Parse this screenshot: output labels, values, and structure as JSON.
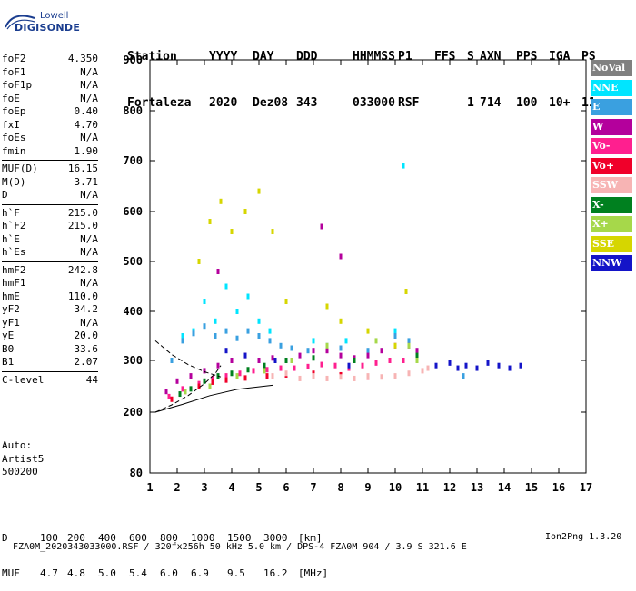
{
  "logo": {
    "line1": "Lowell",
    "line2": "DIGISONDE"
  },
  "header": {
    "columns": [
      {
        "h": "Station",
        "v": "Fortaleza"
      },
      {
        "h": "YYYY",
        "v": "2020"
      },
      {
        "h": "DAY",
        "v": "Dez08"
      },
      {
        "h": "DDD",
        "v": "343"
      },
      {
        "h": "HHMMSS",
        "v": "033000"
      },
      {
        "h": "P1",
        "v": "RSF"
      },
      {
        "h": "FFS",
        "v": ""
      },
      {
        "h": "S",
        "v": "1"
      },
      {
        "h": "AXN",
        "v": "714"
      },
      {
        "h": "PPS",
        "v": "100"
      },
      {
        "h": "IGA",
        "v": "10+"
      },
      {
        "h": "PS",
        "v": "11"
      }
    ]
  },
  "params": [
    [
      {
        "label": "foF2",
        "value": "4.350"
      },
      {
        "label": "foF1",
        "value": "N/A"
      },
      {
        "label": "foF1p",
        "value": "N/A"
      },
      {
        "label": "foE",
        "value": "N/A"
      },
      {
        "label": "foEp",
        "value": "0.40"
      },
      {
        "label": "fxI",
        "value": "4.70"
      },
      {
        "label": "foEs",
        "value": "N/A"
      },
      {
        "label": "fmin",
        "value": "1.90"
      }
    ],
    [
      {
        "label": "MUF(D)",
        "value": "16.15"
      },
      {
        "label": "M(D)",
        "value": "3.71"
      },
      {
        "label": "D",
        "value": "N/A"
      }
    ],
    [
      {
        "label": "h`F",
        "value": "215.0"
      },
      {
        "label": "h`F2",
        "value": "215.0"
      },
      {
        "label": "h`E",
        "value": "N/A"
      },
      {
        "label": "h`Es",
        "value": "N/A"
      }
    ],
    [
      {
        "label": "hmF2",
        "value": "242.8"
      },
      {
        "label": "hmF1",
        "value": "N/A"
      },
      {
        "label": "hmE",
        "value": "110.0"
      },
      {
        "label": "yF2",
        "value": "34.2"
      },
      {
        "label": "yF1",
        "value": "N/A"
      },
      {
        "label": "yE",
        "value": "20.0"
      },
      {
        "label": "B0",
        "value": "33.6"
      },
      {
        "label": "B1",
        "value": "2.07"
      }
    ],
    [
      {
        "label": "C-level",
        "value": "44"
      }
    ]
  ],
  "auto": {
    "line1": "Auto:",
    "line2": "Artist5",
    "line3": "500200"
  },
  "legend": [
    {
      "label": "NoVal",
      "bg": "#808080",
      "fg": "#ffffff"
    },
    {
      "label": "NNE",
      "bg": "#00e5ff",
      "fg": "#ffffff"
    },
    {
      "label": "E",
      "bg": "#3aa0e0",
      "fg": "#ffffff"
    },
    {
      "label": "W",
      "bg": "#b4009c",
      "fg": "#ffffff"
    },
    {
      "label": "Vo-",
      "bg": "#ff1f8f",
      "fg": "#ffffff"
    },
    {
      "label": "Vo+",
      "bg": "#f0002a",
      "fg": "#ffffff"
    },
    {
      "label": "SSW",
      "bg": "#f7b4b4",
      "fg": "#ffffff"
    },
    {
      "label": "X-",
      "bg": "#00801f",
      "fg": "#ffffff"
    },
    {
      "label": "X+",
      "bg": "#a6d84a",
      "fg": "#ffffff"
    },
    {
      "label": "SSE",
      "bg": "#d6d600",
      "fg": "#ffffff"
    },
    {
      "label": "NNW",
      "bg": "#1414c8",
      "fg": "#ffffff"
    }
  ],
  "bottom": {
    "d_label": "D",
    "d_values": [
      "100",
      "200",
      "400",
      "600",
      "800",
      "1000",
      "1500",
      "3000"
    ],
    "d_unit": "[km]",
    "muf_label": "MUF",
    "muf_values": [
      "4.7",
      "4.8",
      "5.0",
      "5.4",
      "6.0",
      "6.9",
      "9.5",
      "16.2"
    ],
    "muf_unit": "[MHz]"
  },
  "footer": {
    "left": "FZA0M_2020343033000.RSF / 320fx256h 50 kHz 5.0 km / DPS-4 FZA0M 904 / 3.9 S 321.6 E",
    "right": "Ion2Png 1.3.20"
  },
  "chart_data": {
    "type": "scatter",
    "title": "",
    "xlabel": "",
    "ylabel": "",
    "xlim": [
      1,
      17
    ],
    "ylim": [
      80,
      900
    ],
    "x_ticks": [
      "1",
      "2",
      "3",
      "4",
      "5",
      "6",
      "7",
      "8",
      "9",
      "10",
      "11",
      "12",
      "13",
      "14",
      "15",
      "16",
      "17"
    ],
    "y_ticks": [
      "80",
      "200",
      "300",
      "400",
      "500",
      "600",
      "700",
      "800",
      "900"
    ],
    "y_tick_values": [
      80,
      200,
      300,
      400,
      500,
      600,
      700,
      800,
      900
    ],
    "grid": false,
    "legend_position": "right",
    "series": [
      {
        "name": "NNE",
        "color": "#00e5ff",
        "points": [
          [
            2.2,
            350
          ],
          [
            2.6,
            360
          ],
          [
            3.0,
            420
          ],
          [
            3.4,
            380
          ],
          [
            3.8,
            450
          ],
          [
            4.2,
            400
          ],
          [
            4.6,
            430
          ],
          [
            5.0,
            380
          ],
          [
            5.4,
            360
          ],
          [
            7.0,
            340
          ],
          [
            8.2,
            340
          ],
          [
            10.3,
            690
          ],
          [
            10.0,
            360
          ]
        ]
      },
      {
        "name": "E",
        "color": "#3aa0e0",
        "points": [
          [
            1.8,
            300
          ],
          [
            2.2,
            340
          ],
          [
            2.6,
            355
          ],
          [
            3.0,
            370
          ],
          [
            3.4,
            350
          ],
          [
            3.8,
            360
          ],
          [
            4.2,
            345
          ],
          [
            4.6,
            360
          ],
          [
            5.0,
            350
          ],
          [
            5.4,
            340
          ],
          [
            5.8,
            330
          ],
          [
            6.2,
            325
          ],
          [
            6.8,
            320
          ],
          [
            7.5,
            330
          ],
          [
            8.0,
            325
          ],
          [
            9.0,
            320
          ],
          [
            10.0,
            350
          ],
          [
            10.5,
            340
          ],
          [
            12.5,
            270
          ]
        ]
      },
      {
        "name": "W",
        "color": "#b4009c",
        "points": [
          [
            1.6,
            240
          ],
          [
            2.0,
            260
          ],
          [
            2.5,
            270
          ],
          [
            3.0,
            280
          ],
          [
            3.5,
            290
          ],
          [
            4.0,
            300
          ],
          [
            4.5,
            310
          ],
          [
            5.0,
            300
          ],
          [
            5.5,
            305
          ],
          [
            6.0,
            300
          ],
          [
            6.5,
            310
          ],
          [
            7.0,
            320
          ],
          [
            7.5,
            320
          ],
          [
            8.0,
            310
          ],
          [
            8.5,
            305
          ],
          [
            9.0,
            310
          ],
          [
            9.5,
            320
          ],
          [
            10.0,
            330
          ],
          [
            10.5,
            330
          ],
          [
            10.8,
            320
          ],
          [
            7.3,
            570
          ],
          [
            8.0,
            510
          ],
          [
            3.5,
            480
          ]
        ]
      },
      {
        "name": "Vo-",
        "color": "#ff1f8f",
        "points": [
          [
            1.7,
            230
          ],
          [
            2.2,
            245
          ],
          [
            2.8,
            255
          ],
          [
            3.3,
            265
          ],
          [
            3.8,
            270
          ],
          [
            4.3,
            275
          ],
          [
            4.8,
            280
          ],
          [
            5.3,
            282
          ],
          [
            5.8,
            285
          ],
          [
            6.3,
            285
          ],
          [
            6.8,
            288
          ],
          [
            7.3,
            292
          ],
          [
            7.8,
            290
          ],
          [
            8.3,
            285
          ],
          [
            8.8,
            290
          ],
          [
            9.3,
            295
          ],
          [
            9.8,
            300
          ],
          [
            10.3,
            300
          ]
        ]
      },
      {
        "name": "Vo+",
        "color": "#f0002a",
        "points": [
          [
            1.8,
            225
          ],
          [
            2.3,
            240
          ],
          [
            2.8,
            250
          ],
          [
            3.3,
            258
          ],
          [
            3.8,
            262
          ],
          [
            4.5,
            266
          ],
          [
            5.3,
            270
          ],
          [
            6.0,
            272
          ],
          [
            7.0,
            275
          ],
          [
            8.0,
            272
          ],
          [
            9.0,
            268
          ]
        ]
      },
      {
        "name": "SSW",
        "color": "#f7b4b4",
        "points": [
          [
            5.5,
            270
          ],
          [
            6.0,
            275
          ],
          [
            6.5,
            265
          ],
          [
            7.0,
            270
          ],
          [
            7.5,
            265
          ],
          [
            8.0,
            268
          ],
          [
            8.5,
            265
          ],
          [
            9.0,
            270
          ],
          [
            9.5,
            268
          ],
          [
            10.0,
            270
          ],
          [
            10.5,
            275
          ],
          [
            11.0,
            280
          ],
          [
            11.2,
            285
          ]
        ]
      },
      {
        "name": "X-",
        "color": "#00801f",
        "points": [
          [
            2.1,
            235
          ],
          [
            2.5,
            245
          ],
          [
            3.0,
            260
          ],
          [
            3.5,
            270
          ],
          [
            4.0,
            275
          ],
          [
            4.6,
            282
          ],
          [
            5.2,
            290
          ],
          [
            6.0,
            300
          ],
          [
            7.0,
            305
          ],
          [
            8.5,
            300
          ],
          [
            10.8,
            310
          ]
        ]
      },
      {
        "name": "X+",
        "color": "#a6d84a",
        "points": [
          [
            2.3,
            240
          ],
          [
            3.2,
            250
          ],
          [
            4.2,
            270
          ],
          [
            5.2,
            280
          ],
          [
            6.2,
            300
          ],
          [
            7.5,
            330
          ],
          [
            9.3,
            340
          ],
          [
            10.5,
            330
          ],
          [
            10.8,
            300
          ]
        ]
      },
      {
        "name": "SSE",
        "color": "#d6d600",
        "points": [
          [
            2.8,
            500
          ],
          [
            3.2,
            580
          ],
          [
            3.6,
            620
          ],
          [
            4.0,
            560
          ],
          [
            4.5,
            600
          ],
          [
            5.0,
            640
          ],
          [
            5.5,
            560
          ],
          [
            6.0,
            420
          ],
          [
            7.5,
            410
          ],
          [
            8.0,
            380
          ],
          [
            9.0,
            360
          ],
          [
            10.0,
            330
          ],
          [
            10.4,
            440
          ]
        ]
      },
      {
        "name": "NNW",
        "color": "#1414c8",
        "points": [
          [
            11.5,
            290
          ],
          [
            12.0,
            295
          ],
          [
            12.3,
            285
          ],
          [
            12.6,
            290
          ],
          [
            13.0,
            285
          ],
          [
            13.4,
            295
          ],
          [
            13.8,
            290
          ],
          [
            14.2,
            285
          ],
          [
            14.6,
            290
          ],
          [
            3.8,
            320
          ],
          [
            4.5,
            310
          ],
          [
            5.6,
            300
          ],
          [
            8.3,
            290
          ]
        ]
      }
    ],
    "annotations": [
      {
        "type": "curve",
        "color": "#000000",
        "style": "solid",
        "points": [
          [
            1.2,
            200
          ],
          [
            2.2,
            215
          ],
          [
            3.2,
            232
          ],
          [
            4.2,
            244
          ],
          [
            5.5,
            252
          ]
        ]
      },
      {
        "type": "curve",
        "color": "#000000",
        "style": "dashed",
        "points": [
          [
            1.2,
            340
          ],
          [
            1.8,
            312
          ],
          [
            2.4,
            292
          ],
          [
            3.0,
            278
          ],
          [
            3.6,
            268
          ]
        ]
      },
      {
        "type": "curve",
        "color": "#000000",
        "style": "dashed",
        "points": [
          [
            1.2,
            200
          ],
          [
            1.8,
            214
          ],
          [
            2.4,
            232
          ],
          [
            3.0,
            255
          ],
          [
            3.4,
            275
          ],
          [
            3.6,
            290
          ]
        ]
      }
    ]
  }
}
